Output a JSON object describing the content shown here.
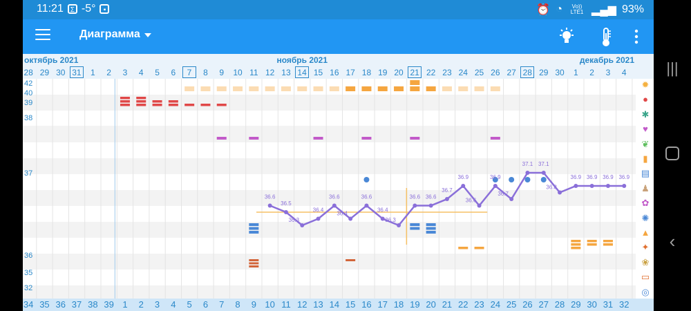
{
  "status": {
    "time": "11:21",
    "temp": "-5°",
    "battery": "93%",
    "network": "Vo)) LTE1"
  },
  "appbar": {
    "title": "Диаграмма"
  },
  "months": [
    {
      "label": "октябрь 2021",
      "day_index": 0
    },
    {
      "label": "ноябрь 2021",
      "day_index": 17
    },
    {
      "label": "декабрь 2021",
      "day_index": 35
    }
  ],
  "days": [
    "28",
    "29",
    "30",
    "31",
    "1",
    "2",
    "3",
    "4",
    "5",
    "6",
    "7",
    "8",
    "9",
    "10",
    "11",
    "12",
    "13",
    "14",
    "15",
    "16",
    "17",
    "18",
    "19",
    "20",
    "21",
    "22",
    "23",
    "24",
    "25",
    "26",
    "27",
    "28",
    "29",
    "30",
    "1",
    "2",
    "3",
    "4"
  ],
  "boxed_day_indexes": [
    3,
    10,
    17,
    24,
    31
  ],
  "cycle_days": [
    "34",
    "35",
    "36",
    "37",
    "38",
    "39",
    "1",
    "2",
    "3",
    "4",
    "5",
    "6",
    "7",
    "8",
    "9",
    "10",
    "11",
    "12",
    "13",
    "14",
    "15",
    "16",
    "17",
    "18",
    "19",
    "20",
    "21",
    "22",
    "23",
    "24",
    "25",
    "26",
    "27",
    "28",
    "29",
    "30",
    "31",
    "32"
  ],
  "y_axis_labels": [
    "42",
    "40",
    "39",
    "38",
    "37",
    "36",
    "35",
    "32"
  ],
  "temperatures": [
    {
      "day_index": 15,
      "label": "36.6",
      "value": 36.6
    },
    {
      "day_index": 16,
      "label": "36.5",
      "value": 36.5
    },
    {
      "day_index": 17,
      "label": "36.3",
      "value": 36.3
    },
    {
      "day_index": 18,
      "label": "36.4",
      "value": 36.4
    },
    {
      "day_index": 19,
      "label": "36.6",
      "value": 36.6
    },
    {
      "day_index": 20,
      "label": "36.4",
      "value": 36.4
    },
    {
      "day_index": 21,
      "label": "36.6",
      "value": 36.6
    },
    {
      "day_index": 22,
      "label": "36.4",
      "value": 36.4
    },
    {
      "day_index": 23,
      "label": "36.3",
      "value": 36.3
    },
    {
      "day_index": 24,
      "label": "36.6",
      "value": 36.6
    },
    {
      "day_index": 25,
      "label": "36.6",
      "value": 36.6
    },
    {
      "day_index": 26,
      "label": "36.7",
      "value": 36.7
    },
    {
      "day_index": 27,
      "label": "36.9",
      "value": 36.9
    },
    {
      "day_index": 28,
      "label": "36.6",
      "value": 36.6
    },
    {
      "day_index": 29,
      "label": "36.9",
      "value": 36.9
    },
    {
      "day_index": 30,
      "label": "36.7",
      "value": 36.7
    },
    {
      "day_index": 31,
      "label": "37.1",
      "value": 37.1
    },
    {
      "day_index": 32,
      "label": "37.1",
      "value": 37.1
    },
    {
      "day_index": 33,
      "label": "36.8",
      "value": 36.8
    },
    {
      "day_index": 34,
      "label": "36.9",
      "value": 36.9
    },
    {
      "day_index": 35,
      "label": "36.9",
      "value": 36.9
    },
    {
      "day_index": 36,
      "label": "36.9",
      "value": 36.9
    },
    {
      "day_index": 37,
      "label": "36.9",
      "value": 36.9
    }
  ],
  "coverline_value": 36.5,
  "ovulation_day_index": 24,
  "markers": {
    "row_42_pale": [
      10,
      11,
      12,
      13,
      14,
      15,
      16,
      17,
      18,
      19,
      20,
      26,
      27,
      28,
      29
    ],
    "row_42_orange": [
      20,
      21,
      22,
      23,
      24,
      25
    ],
    "row_42_tall_day": 24,
    "row_39_red": [
      6,
      7,
      8,
      9,
      10,
      11,
      12
    ],
    "row_38_magenta": [
      12,
      14,
      18,
      21,
      24,
      29
    ],
    "row_36_9_blue_dots": [
      21,
      29,
      30,
      31,
      32
    ],
    "row_36_blue_blocks": [
      14,
      24,
      25
    ],
    "row_35_orange": [
      27,
      28,
      34,
      35,
      36
    ],
    "row_32_red": [
      14,
      20
    ]
  },
  "side_icons": [
    "sun-icon",
    "drop-icon",
    "virus-icon",
    "heart-icon",
    "leaf-icon",
    "pill-icon",
    "note-icon",
    "walk-icon",
    "flower-icon",
    "sparkle-icon",
    "bottle-icon",
    "drop-sun-icon",
    "flower-small-icon",
    "monitor-icon",
    "ring-icon"
  ],
  "colors": {
    "status_bar": "#1f8bd6",
    "app_bar": "#2196f3",
    "line": "#8a6fd9",
    "coverline": "#f5c065",
    "red": "#e04848",
    "orange": "#f5a640",
    "pale_orange": "#fbdcb3",
    "magenta": "#c25ac9",
    "blue": "#4a88d6",
    "brown": "#d2653a"
  }
}
